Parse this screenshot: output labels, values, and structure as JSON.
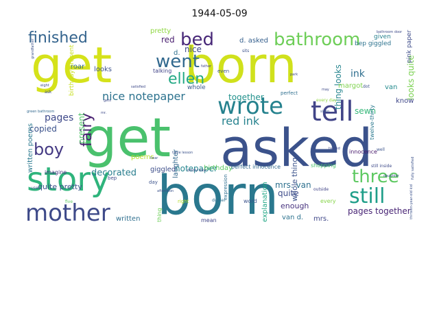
{
  "title": "1944-05-09",
  "words": [
    {
      "text": "get",
      "color": "#d5e21a"
    },
    {
      "text": "born",
      "color": "#d0e11c"
    },
    {
      "text": "get",
      "color": "#4ac16d"
    },
    {
      "text": "asked",
      "color": "#3b528b"
    },
    {
      "text": "born",
      "color": "#2a788e"
    },
    {
      "text": "story",
      "color": "#2fb47c"
    },
    {
      "text": "tell",
      "color": "#414487"
    },
    {
      "text": "wrote",
      "color": "#26828e"
    },
    {
      "text": "bathroom",
      "color": "#6ece58"
    },
    {
      "text": "bed",
      "color": "#482878"
    },
    {
      "text": "went",
      "color": "#31688e"
    },
    {
      "text": "finished",
      "color": "#33638d"
    },
    {
      "text": "ellen",
      "color": "#22a884"
    },
    {
      "text": "mother",
      "color": "#3e4a89"
    },
    {
      "text": "three",
      "color": "#5ec962"
    },
    {
      "text": "still",
      "color": "#1f9e89"
    },
    {
      "text": "boy",
      "color": "#443983"
    },
    {
      "text": "fairy",
      "color": "#481f70"
    },
    {
      "text": "nice notepaper",
      "color": "#2c728e"
    },
    {
      "text": "red ink",
      "color": "#26828e"
    },
    {
      "text": "decorated",
      "color": "#287d8e"
    },
    {
      "text": "pages",
      "color": "#3e4989"
    },
    {
      "text": "present",
      "color": "#52c569"
    },
    {
      "text": "copied",
      "color": "#3b528b"
    },
    {
      "text": "sewn",
      "color": "#35b779"
    },
    {
      "text": "ink",
      "color": "#2e6e8e"
    },
    {
      "text": "thing looks",
      "color": "#25848e"
    },
    {
      "text": "looks quite",
      "color": "#7ad151"
    },
    {
      "text": "together",
      "color": "#21918c"
    },
    {
      "text": "whole thing",
      "color": "#3b528b"
    },
    {
      "text": "notepaper",
      "color": "#25858e"
    },
    {
      "text": "pages together",
      "color": "#482475"
    },
    {
      "text": "quite",
      "color": "#3e4c8a"
    },
    {
      "text": "mrs. van",
      "color": "#2d708e"
    },
    {
      "text": "enough",
      "color": "#46327e"
    },
    {
      "text": "van d.",
      "color": "#2c728e"
    },
    {
      "text": "mrs.",
      "color": "#3f4788"
    },
    {
      "text": "explanation",
      "color": "#22a785"
    },
    {
      "text": "laughter",
      "color": "#31688e"
    },
    {
      "text": "birthday",
      "color": "#5ec962"
    },
    {
      "text": "quite pretty",
      "color": "#3b528b"
    },
    {
      "text": "written poems",
      "color": "#2a788e"
    },
    {
      "text": "poems",
      "color": "#b5de2b"
    },
    {
      "text": "giggled",
      "color": "#3d4e8a"
    },
    {
      "text": "written",
      "color": "#2e6e8e"
    },
    {
      "text": "d. asked",
      "color": "#355f8d"
    },
    {
      "text": "pretty",
      "color": "#90d743"
    },
    {
      "text": "red",
      "color": "#481d6f"
    },
    {
      "text": "nice",
      "color": "#3e4a89"
    },
    {
      "text": "d.",
      "color": "#2e6f8e"
    },
    {
      "text": "given",
      "color": "#27808e"
    },
    {
      "text": "bep giggled",
      "color": "#2c728e"
    },
    {
      "text": "pink paper",
      "color": "#3e4c8a"
    },
    {
      "text": "margot",
      "color": "#7fd34e"
    },
    {
      "text": "know",
      "color": "#3f4788"
    },
    {
      "text": "van",
      "color": "#238a8d"
    },
    {
      "text": "roar",
      "color": "#31688e"
    },
    {
      "text": "looks",
      "color": "#3b528b"
    },
    {
      "text": "birthday present",
      "color": "#c8e020"
    },
    {
      "text": "talking",
      "color": "#414487"
    },
    {
      "text": "whole",
      "color": "#38588c"
    },
    {
      "text": "perfect innocence",
      "color": "#31688e"
    },
    {
      "text": "innocence",
      "color": "#481a6c"
    },
    {
      "text": "twelve-thirty",
      "color": "#2a788e"
    },
    {
      "text": "shopping",
      "color": "#4ac16d"
    },
    {
      "text": "imagine",
      "color": "#46337f"
    },
    {
      "text": "mean",
      "color": "#404688"
    },
    {
      "text": "word",
      "color": "#3b528b"
    },
    {
      "text": "expression",
      "color": "#2e6e8e"
    },
    {
      "text": "every",
      "color": "#86d549"
    },
    {
      "text": "even know",
      "color": "#3b528b"
    },
    {
      "text": "green bathroom",
      "color": "#31688e"
    },
    {
      "text": "boldly took",
      "color": "#3e4a89"
    },
    {
      "text": "dussel",
      "color": "#2e6e8e"
    },
    {
      "text": "fully satisfied",
      "color": "#3b528b"
    },
    {
      "text": "still inside",
      "color": "#3e4a89"
    },
    {
      "text": "thirteen-year-old kid",
      "color": "#3b528b"
    },
    {
      "text": "bathroom door",
      "color": "#3e4a89"
    },
    {
      "text": "grandfather",
      "color": "#3b528b"
    },
    {
      "text": "father",
      "color": "#414487"
    },
    {
      "text": "satisfied",
      "color": "#3e4a89"
    },
    {
      "text": "sits",
      "color": "#3b528b"
    },
    {
      "text": "park",
      "color": "#3e4a89"
    },
    {
      "text": "perfect",
      "color": "#2e6e8e"
    },
    {
      "text": "every day",
      "color": "#90d743"
    },
    {
      "text": "outside",
      "color": "#414487"
    },
    {
      "text": "even",
      "color": "#3b528b"
    },
    {
      "text": "bep",
      "color": "#3e4a89"
    },
    {
      "text": "afternoon",
      "color": "#3b528b"
    },
    {
      "text": "eight",
      "color": "#3e4a89"
    },
    {
      "text": "sleep",
      "color": "#3b528b"
    },
    {
      "text": "daughter",
      "color": "#3e4a89"
    },
    {
      "text": "well",
      "color": "#3b528b"
    },
    {
      "text": "gets",
      "color": "#3e4a89"
    },
    {
      "text": "table lesson",
      "color": "#3b528b"
    },
    {
      "text": "tacked",
      "color": "#3e4a89"
    },
    {
      "text": "hear",
      "color": "#3b528b"
    },
    {
      "text": "may",
      "color": "#3e4a89"
    },
    {
      "text": "dot",
      "color": "#3b528b"
    },
    {
      "text": "ask",
      "color": "#3e4a89"
    },
    {
      "text": "use",
      "color": "#3b528b"
    },
    {
      "text": "five",
      "color": "#5ec962"
    },
    {
      "text": "right",
      "color": "#b5de2b"
    },
    {
      "text": "thing",
      "color": "#6ece58"
    },
    {
      "text": "day",
      "color": "#3b528b"
    },
    {
      "text": "mr.",
      "color": "#3e4a89"
    }
  ]
}
